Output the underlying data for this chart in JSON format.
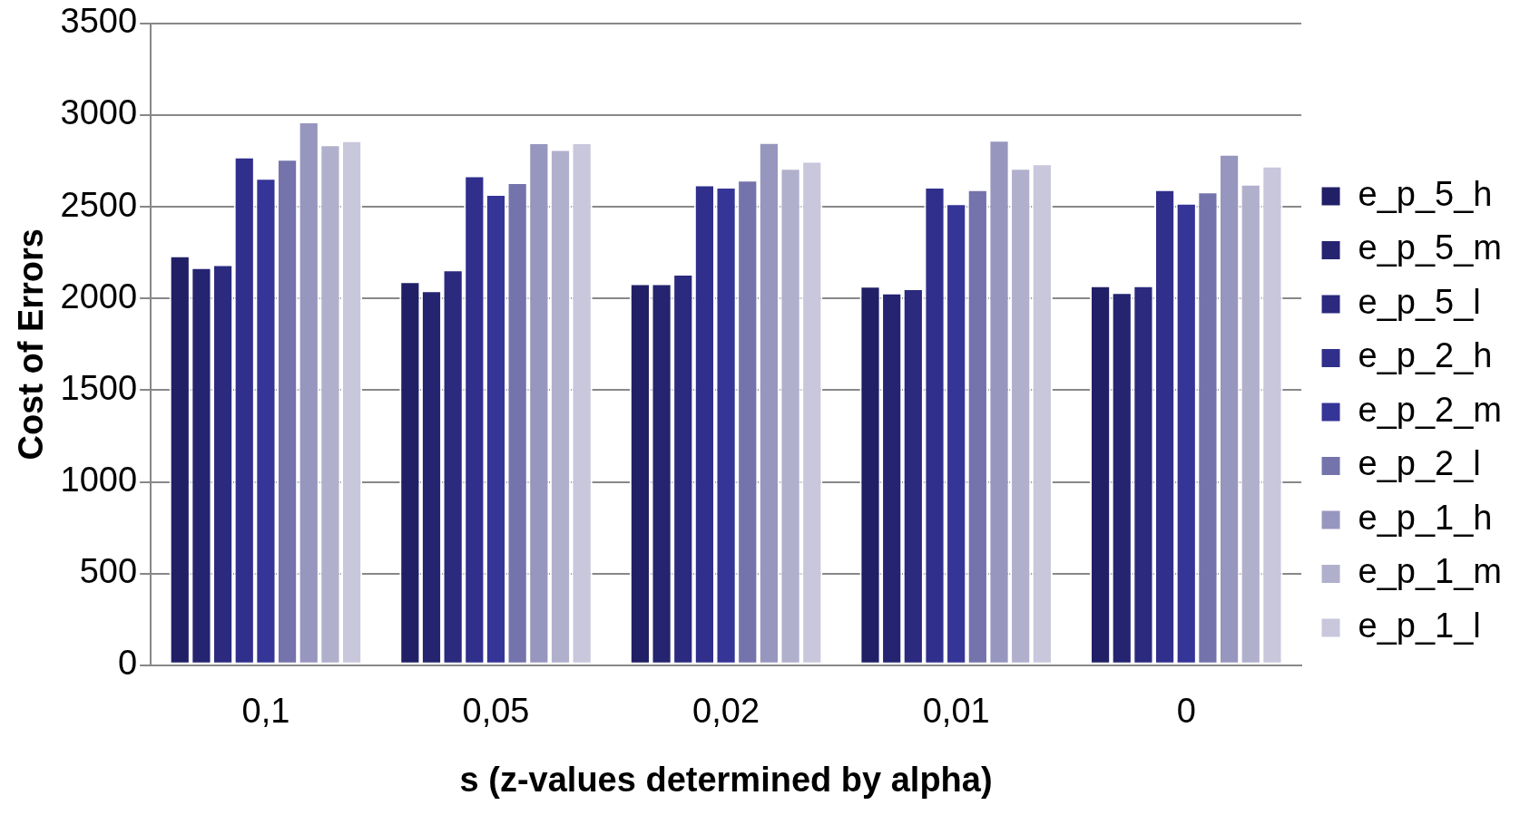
{
  "chart_data": {
    "type": "bar",
    "xlabel": "s (z-values determined by alpha)",
    "ylabel": "Cost of Errors",
    "categories": [
      "0,1",
      "0,05",
      "0,02",
      "0,01",
      "0"
    ],
    "series": [
      {
        "name": "e_p_5_h",
        "color": "#212066",
        "values": [
          2235,
          2094,
          2083,
          2069,
          2071
        ]
      },
      {
        "name": "e_p_5_m",
        "color": "#252470",
        "values": [
          2171,
          2044,
          2083,
          2032,
          2034
        ]
      },
      {
        "name": "e_p_5_l",
        "color": "#2b2a7e",
        "values": [
          2186,
          2158,
          2135,
          2056,
          2071
        ]
      },
      {
        "name": "e_p_2_h",
        "color": "#302f8c",
        "values": [
          2774,
          2671,
          2622,
          2609,
          2596
        ]
      },
      {
        "name": "e_p_2_m",
        "color": "#353597",
        "values": [
          2658,
          2570,
          2609,
          2519,
          2521
        ]
      },
      {
        "name": "e_p_2_l",
        "color": "#7473ac",
        "values": [
          2761,
          2634,
          2647,
          2596,
          2583
        ]
      },
      {
        "name": "e_p_1_h",
        "color": "#9796bf",
        "values": [
          2965,
          2851,
          2853,
          2865,
          2788
        ]
      },
      {
        "name": "e_p_1_m",
        "color": "#b1b0cc",
        "values": [
          2840,
          2814,
          2712,
          2712,
          2625
        ]
      },
      {
        "name": "e_p_1_l",
        "color": "#c8c7dc",
        "values": [
          2862,
          2851,
          2750,
          2736,
          2724
        ]
      }
    ],
    "ylim": [
      0,
      3500
    ],
    "yticks": [
      0,
      500,
      1000,
      1500,
      2000,
      2500,
      3000,
      3500
    ],
    "grid": "y",
    "legend": "right"
  }
}
